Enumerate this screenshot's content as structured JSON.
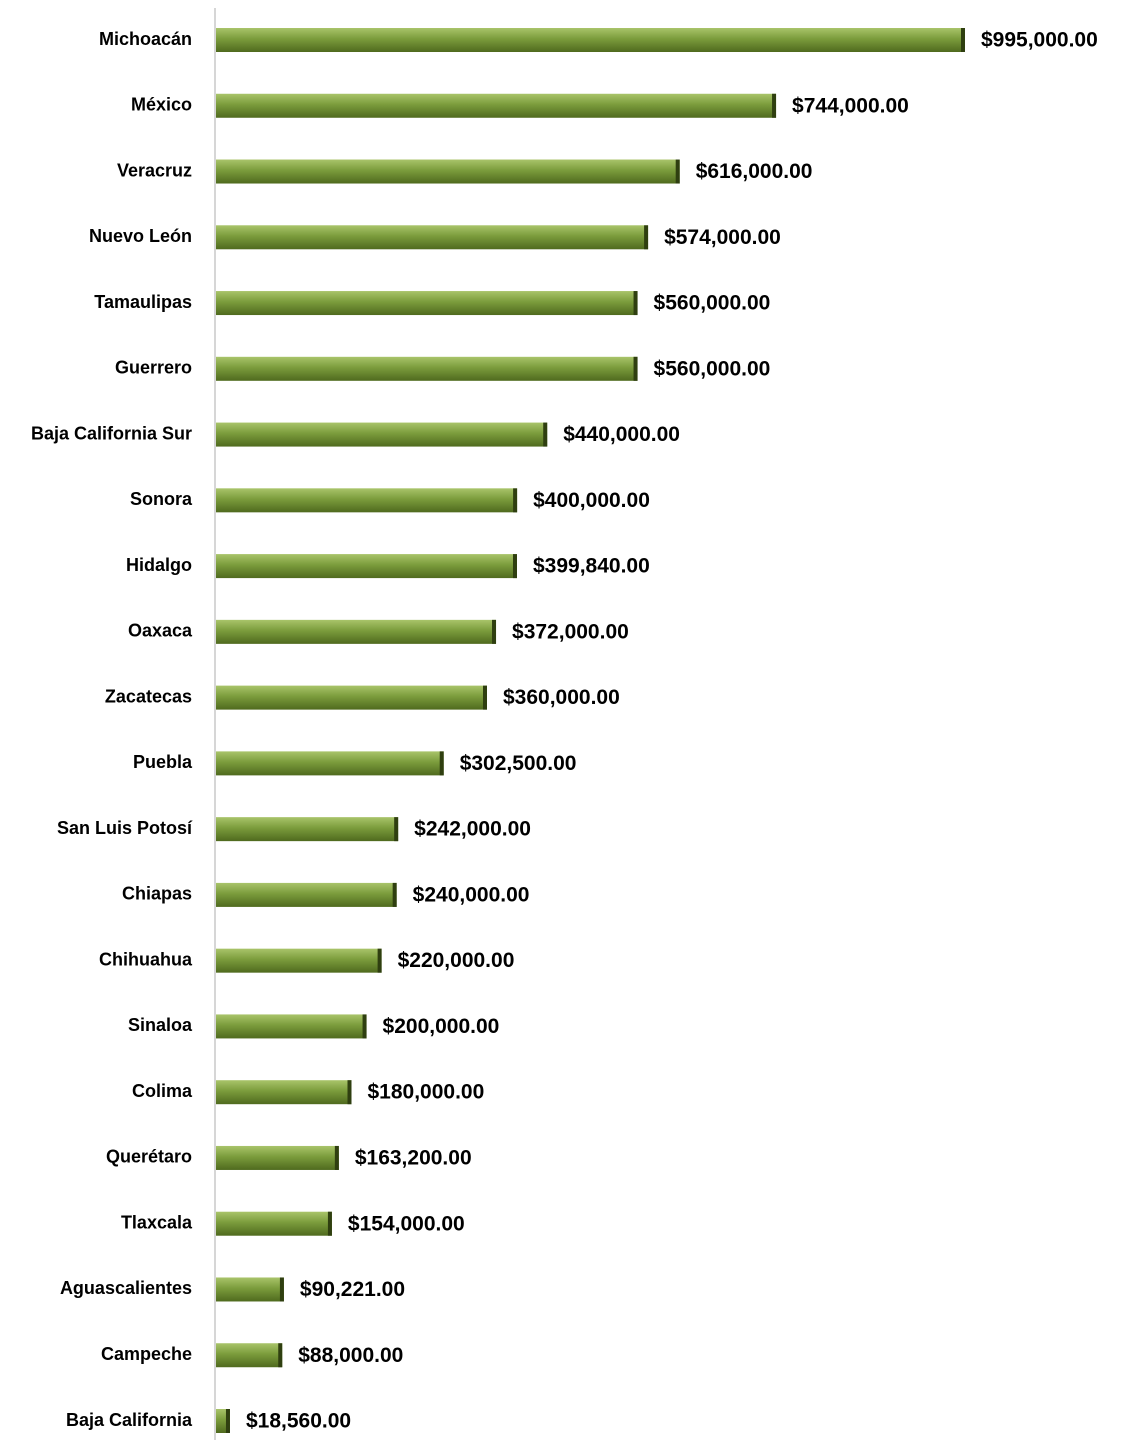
{
  "chart_data": {
    "type": "bar",
    "orientation": "horizontal",
    "color": "#7b9c3c",
    "categories": [
      "Michoacán",
      "México",
      "Veracruz",
      "Nuevo León",
      "Tamaulipas",
      "Guerrero",
      "Baja California Sur",
      "Sonora",
      "Hidalgo",
      "Oaxaca",
      "Zacatecas",
      "Puebla",
      "San Luis Potosí",
      "Chiapas",
      "Chihuahua",
      "Sinaloa",
      "Colima",
      "Querétaro",
      "Tlaxcala",
      "Aguascalientes",
      "Campeche",
      "Baja California"
    ],
    "values": [
      995000,
      744000,
      616000,
      574000,
      560000,
      560000,
      440000,
      400000,
      399840,
      372000,
      360000,
      302500,
      242000,
      240000,
      220000,
      200000,
      180000,
      163200,
      154000,
      90221,
      88000,
      18560
    ],
    "value_labels": [
      "$995,000.00",
      "$744,000.00",
      "$616,000.00",
      "$574,000.00",
      "$560,000.00",
      "$560,000.00",
      "$440,000.00",
      "$400,000.00",
      "$399,840.00",
      "$372,000.00",
      "$360,000.00",
      "$302,500.00",
      "$242,000.00",
      "$240,000.00",
      "$220,000.00",
      "$200,000.00",
      "$180,000.00",
      "$163,200.00",
      "$154,000.00",
      "$90,221.00",
      "$88,000.00",
      "$18,560.00"
    ]
  }
}
